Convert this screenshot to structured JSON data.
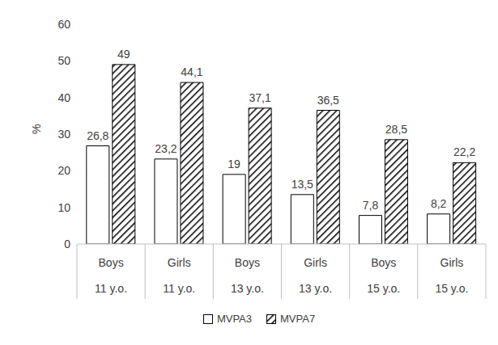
{
  "chart_data": {
    "type": "bar",
    "y_label": "%",
    "categories": [
      "Boys",
      "Girls",
      "Boys",
      "Girls",
      "Boys",
      "Girls"
    ],
    "category_groups": [
      "11 y.o.",
      "11 y.o.",
      "13 y.o.",
      "13 y.o.",
      "15 y.o.",
      "15 y.o."
    ],
    "series": [
      {
        "name": "MVPA3",
        "color": "#ffffff",
        "values": [
          26.8,
          23.2,
          19,
          13.5,
          7.8,
          8.2
        ],
        "value_labels": [
          "26,8",
          "23,2",
          "19",
          "13,5",
          "7,8",
          "8,2"
        ]
      },
      {
        "name": "MVPA7",
        "color": "#000000",
        "values": [
          49,
          44.1,
          37.1,
          36.5,
          28.5,
          22.2
        ],
        "value_labels": [
          "49",
          "44,1",
          "37,1",
          "36,5",
          "28,5",
          "22,2"
        ]
      }
    ],
    "ylim": [
      0,
      60
    ],
    "yticks": [
      0,
      10,
      20,
      30,
      40,
      50,
      60
    ],
    "grid": false,
    "legend": "bottom",
    "data_labels": true
  }
}
